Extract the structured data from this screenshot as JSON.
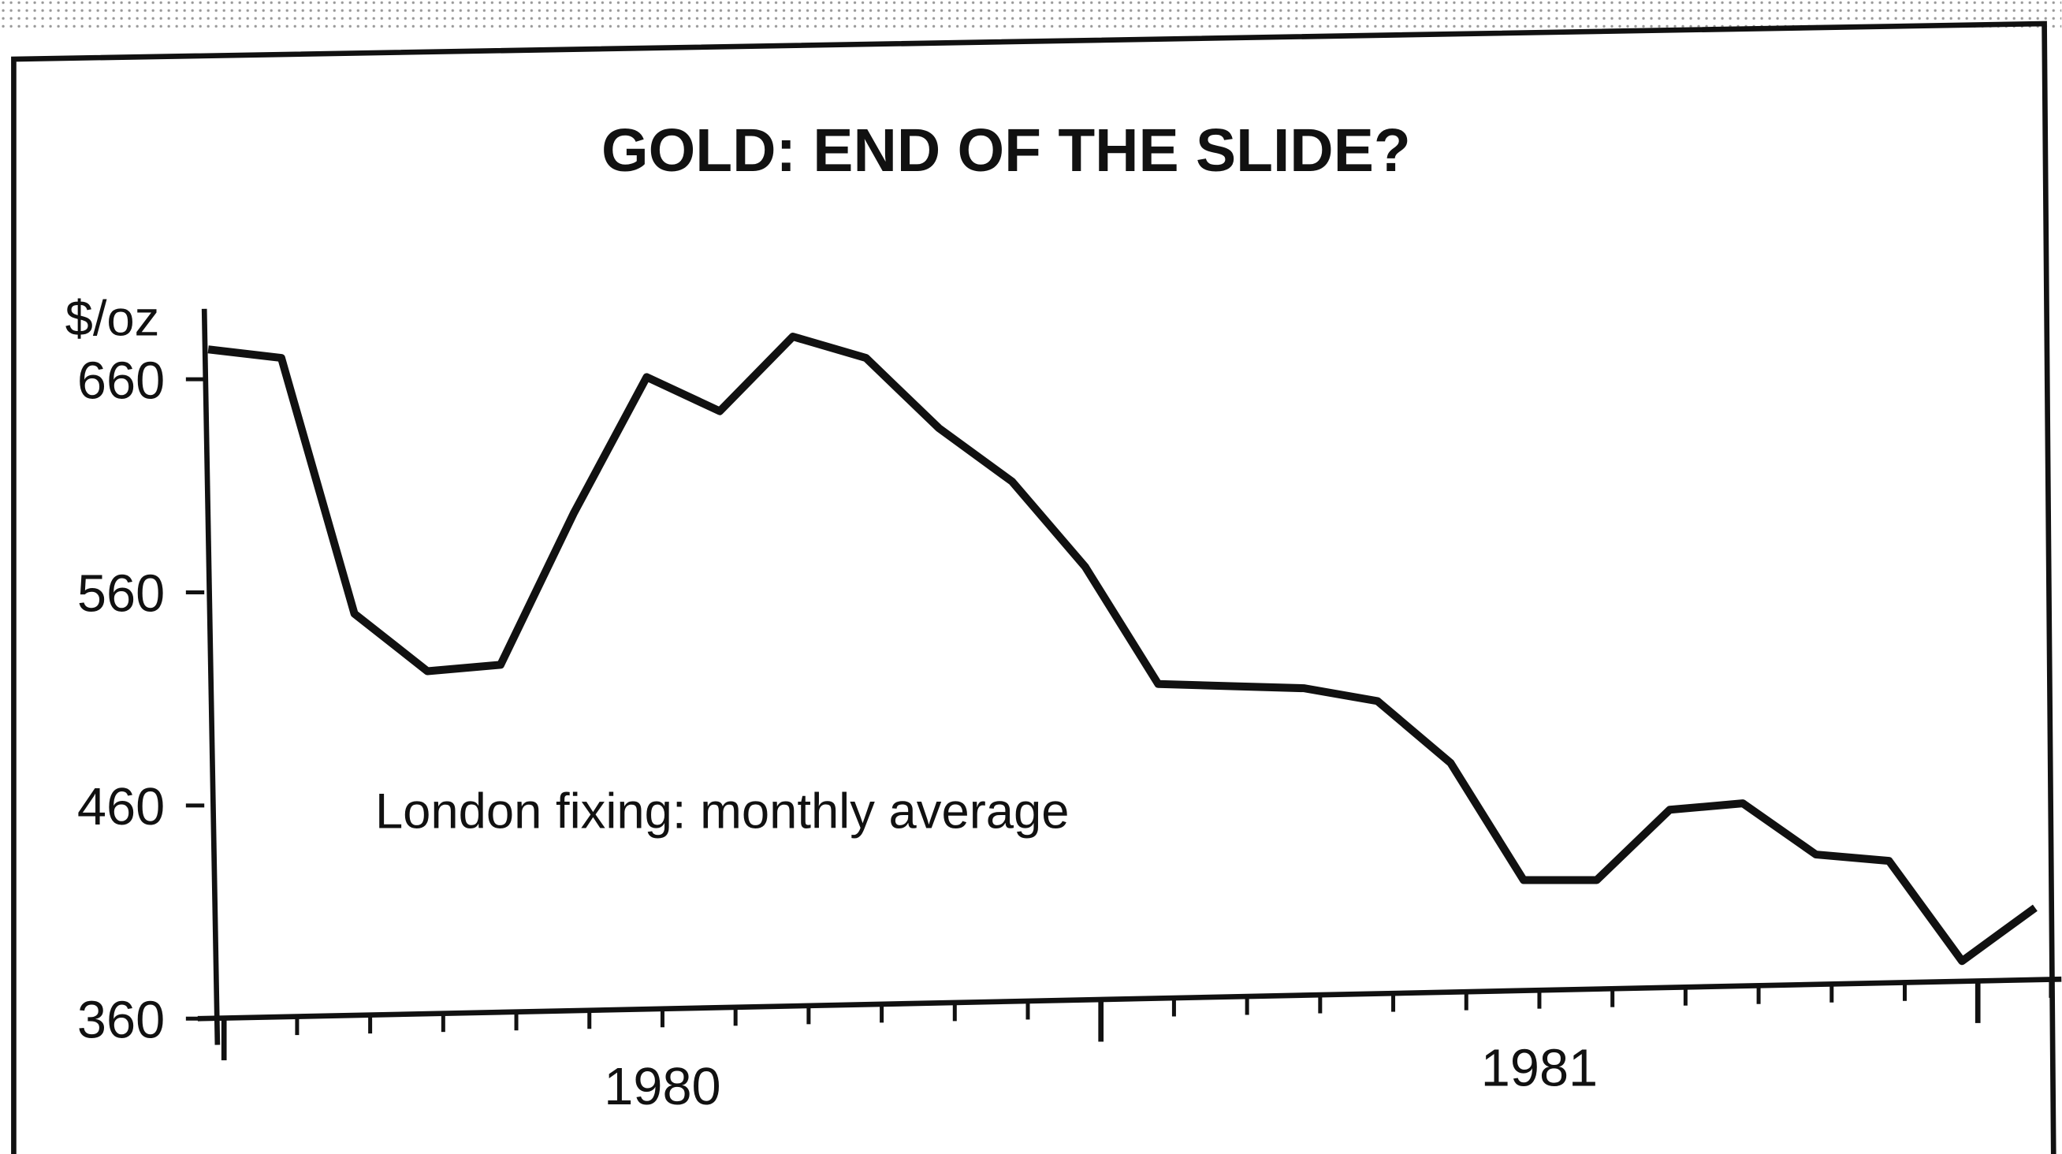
{
  "chart_data": {
    "type": "line",
    "title": "GOLD: END OF THE SLIDE?",
    "y_label": "$/oz",
    "annotation": "London fixing: monthly average",
    "year_labels": [
      "1980",
      "1981"
    ],
    "categories": [
      null,
      null,
      null,
      null,
      null,
      null,
      null,
      null,
      null,
      null,
      null,
      null,
      null,
      null,
      null,
      null,
      null,
      null,
      null,
      null,
      null,
      null,
      null,
      null,
      null,
      null
    ],
    "series": [
      {
        "name": "London fixing: monthly average",
        "color": "#111111",
        "values": [
          674,
          670,
          550,
          523,
          526,
          597,
          661,
          645,
          680,
          670,
          637,
          612,
          572,
          517,
          516,
          515,
          509,
          480,
          425,
          425,
          458,
          461,
          437,
          434,
          387,
          412
        ]
      }
    ],
    "ylim": [
      360,
      693
    ],
    "yticks": [
      360,
      460,
      560,
      660
    ],
    "grid": false
  }
}
